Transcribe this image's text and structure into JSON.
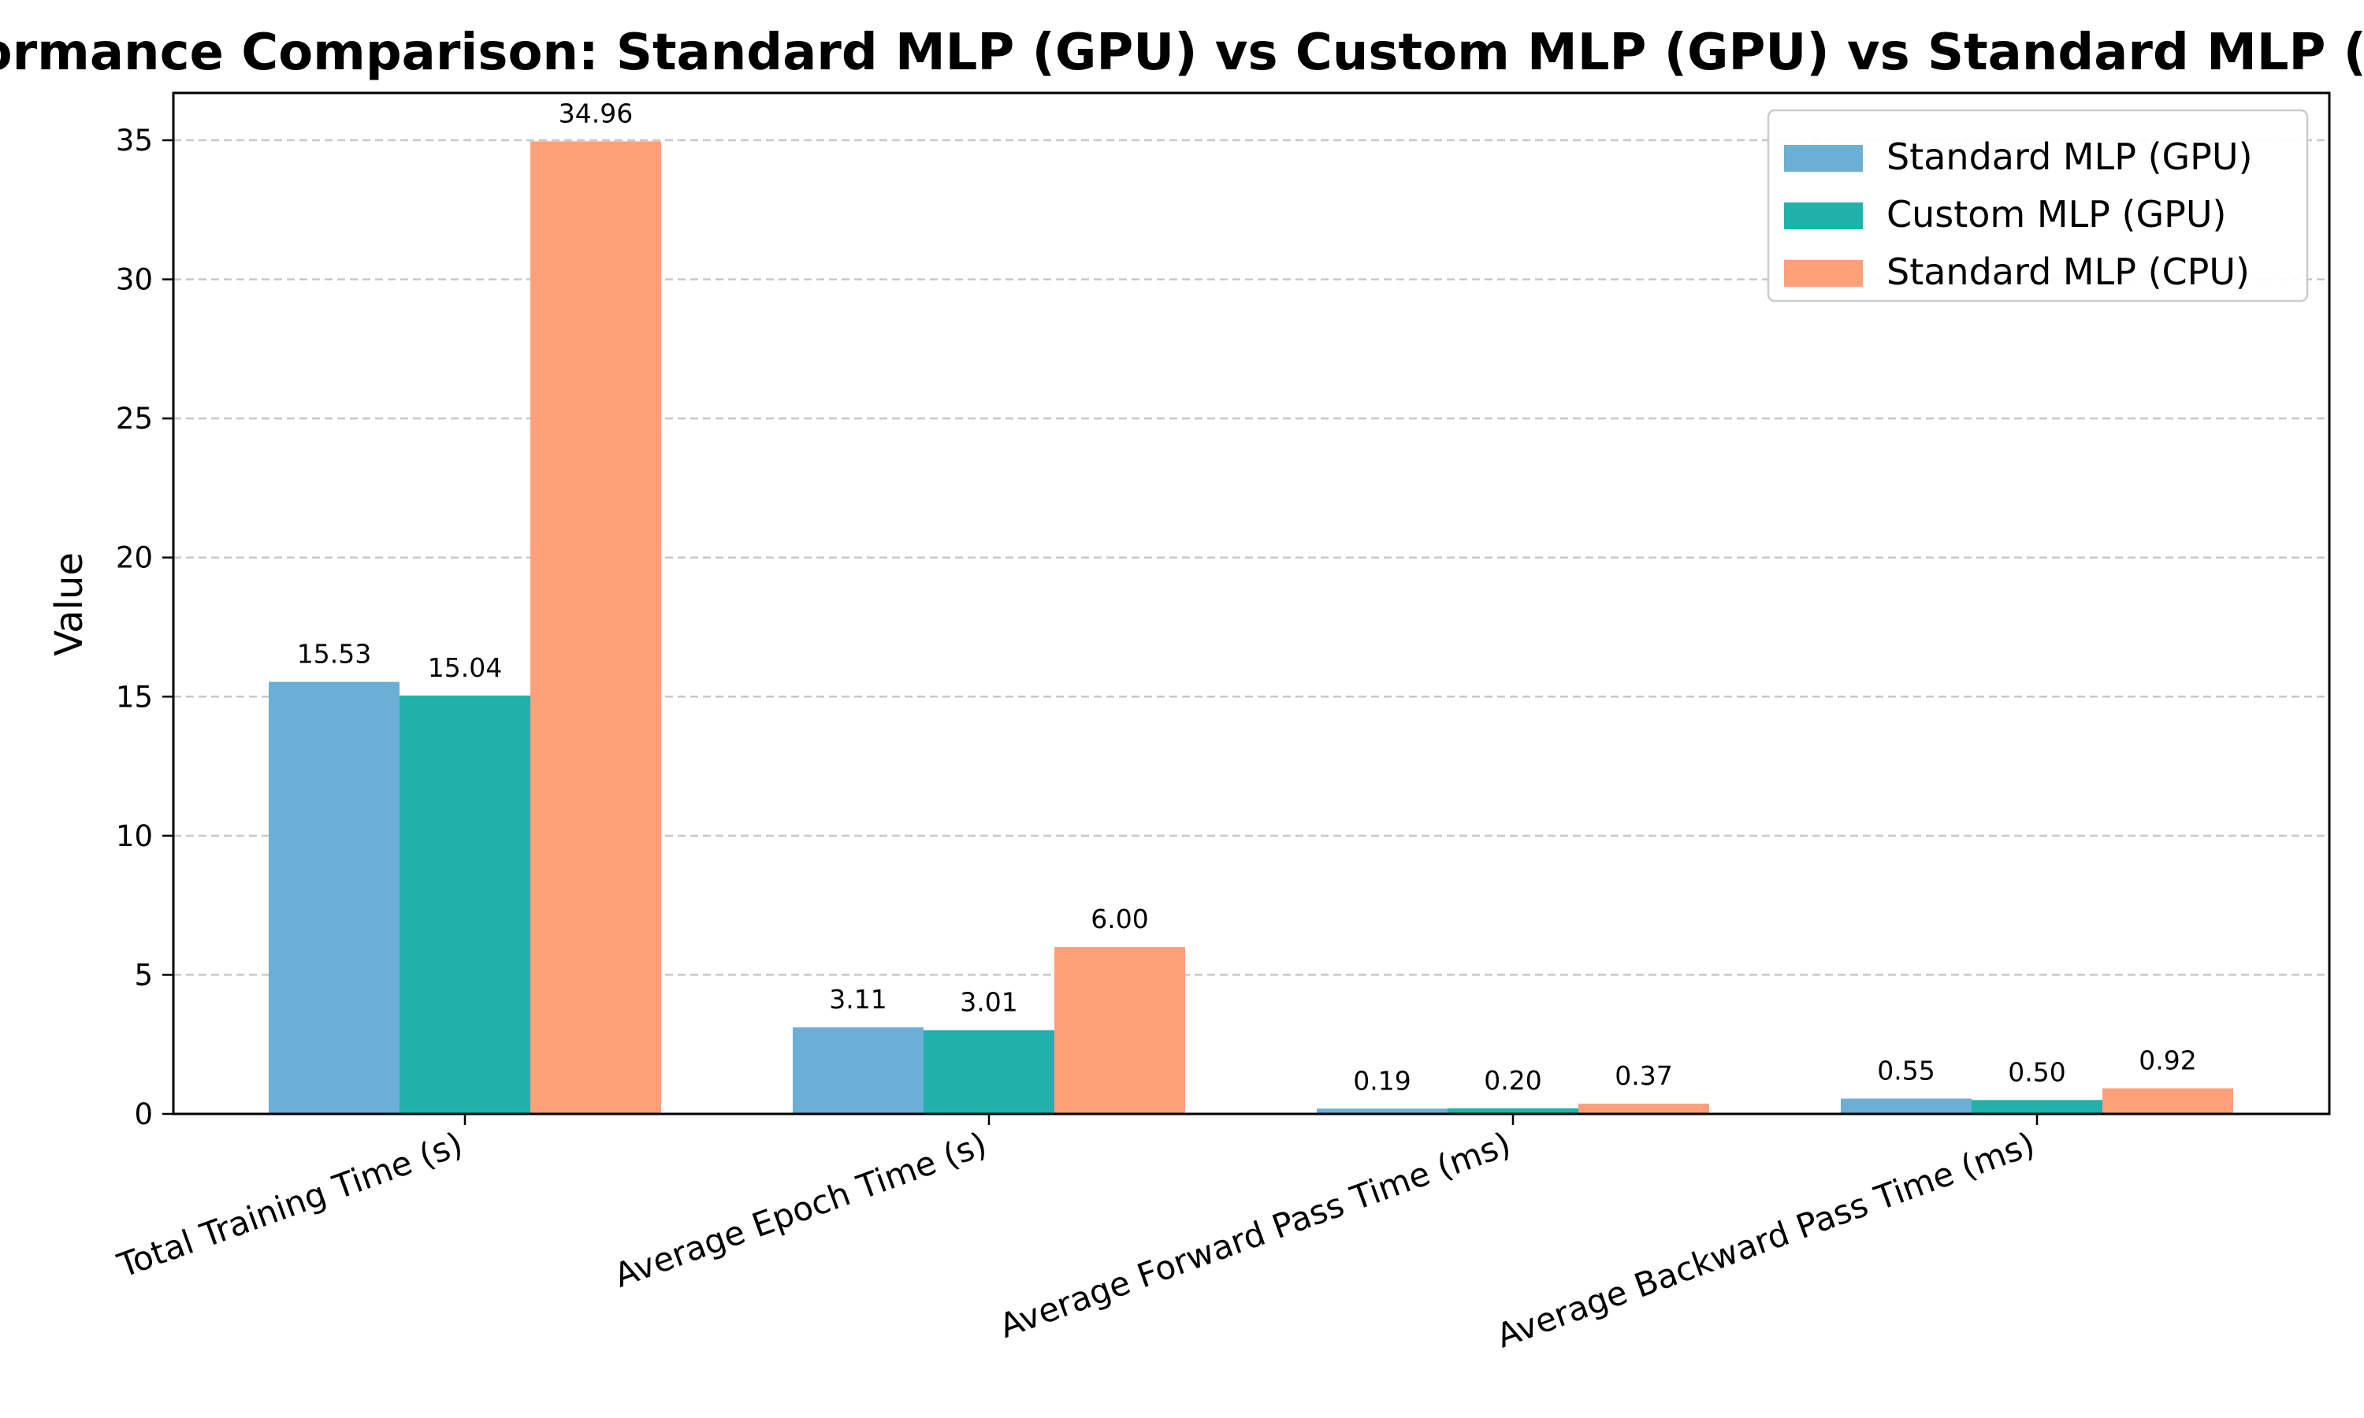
{
  "chart_data": {
    "type": "bar",
    "title": "Performance Comparison: Standard MLP (GPU) vs Custom MLP (GPU) vs Standard MLP (CPU)",
    "xlabel": "",
    "ylabel": "Value",
    "categories": [
      "Total Training Time (s)",
      "Average Epoch Time (s)",
      "Average Forward Pass Time (ms)",
      "Average Backward Pass Time (ms)"
    ],
    "series": [
      {
        "name": "Standard MLP (GPU)",
        "color": "#6baed6",
        "values": [
          15.53,
          3.11,
          0.19,
          0.55
        ],
        "labels": [
          "15.53",
          "3.11",
          "0.19",
          "0.55"
        ]
      },
      {
        "name": "Custom MLP (GPU)",
        "color": "#20b2aa",
        "values": [
          15.04,
          3.01,
          0.2,
          0.5
        ],
        "labels": [
          "15.04",
          "3.01",
          "0.20",
          "0.50"
        ]
      },
      {
        "name": "Standard MLP (CPU)",
        "color": "#ffa07a",
        "values": [
          34.96,
          6.0,
          0.37,
          0.92
        ],
        "labels": [
          "34.96",
          "6.00",
          "0.37",
          "0.92"
        ]
      }
    ],
    "ylim": [
      0,
      36.7
    ],
    "yticks": [
      0,
      5,
      10,
      15,
      20,
      25,
      30,
      35
    ],
    "grid": "y-dashed",
    "legend_position": "top-right"
  }
}
